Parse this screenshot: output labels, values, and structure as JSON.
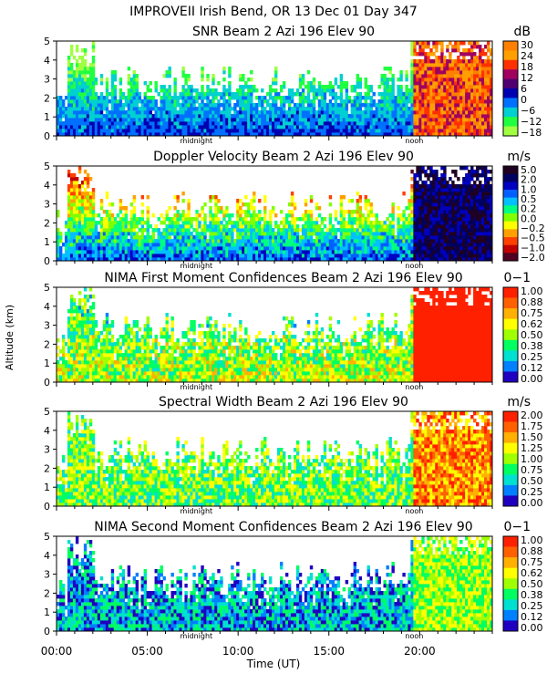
{
  "figure": {
    "title": "IMPROVEII  Irish Bend, OR  13 Dec 01 Day 347",
    "ylabel": "Altitude (km)",
    "xlabel": "Time (UT)",
    "x_ticks": [
      "00:00",
      "05:00",
      "10:00",
      "15:00",
      "20:00"
    ],
    "markers": {
      "midnight": "midnight",
      "noon": "noon"
    }
  },
  "chart_data": [
    {
      "type": "heatmap",
      "title": "SNR Beam 2 Azi 196 Elev 90",
      "unit": "dB",
      "y_ticks": [
        "0",
        "1",
        "2",
        "3",
        "4",
        "5"
      ],
      "ylim": [
        0,
        5
      ],
      "xlim_hours": [
        0,
        24
      ],
      "colorbar": {
        "labels": [
          "30",
          "24",
          "18",
          "12",
          "6",
          "0",
          "−6",
          "−12",
          "−18"
        ],
        "colors": [
          "#ff7f00",
          "#ffa000",
          "#ff3000",
          "#a00060",
          "#500070",
          "#0000b0",
          "#0070ff",
          "#00d0d0",
          "#20ff40",
          "#a0ff40"
        ]
      }
    },
    {
      "type": "heatmap",
      "title": "Doppler Velocity Beam 2 Azi 196 Elev 90",
      "unit": "m/s",
      "y_ticks": [
        "0",
        "1",
        "2",
        "3",
        "4",
        "5"
      ],
      "ylim": [
        0,
        5
      ],
      "xlim_hours": [
        0,
        24
      ],
      "colorbar": {
        "labels": [
          "5.0",
          "2.0",
          "1.0",
          "0.5",
          "0.2",
          "0.0",
          "−0.2",
          "−0.5",
          "−1.0",
          "−2.0"
        ],
        "colors": [
          "#200020",
          "#000060",
          "#0000c0",
          "#0060ff",
          "#00c0ff",
          "#00ff80",
          "#80ff00",
          "#ffff00",
          "#ffa000",
          "#ff4000",
          "#c00000",
          "#500020"
        ]
      }
    },
    {
      "type": "heatmap",
      "title": "NIMA First Moment Confidences Beam 2 Azi 196 Elev 90",
      "unit": "0−1",
      "y_ticks": [
        "0",
        "1",
        "2",
        "3",
        "4",
        "5"
      ],
      "ylim": [
        0,
        5
      ],
      "xlim_hours": [
        0,
        24
      ],
      "colorbar": {
        "labels": [
          "1.00",
          "0.88",
          "0.75",
          "0.62",
          "0.50",
          "0.38",
          "0.25",
          "0.12",
          "0.00"
        ],
        "colors": [
          "#ff2000",
          "#ff6000",
          "#ffb000",
          "#ffff00",
          "#a0ff00",
          "#00ff60",
          "#00e0d0",
          "#0080ff",
          "#2000c0"
        ]
      }
    },
    {
      "type": "heatmap",
      "title": "Spectral Width Beam 2 Azi 196 Elev 90",
      "unit": "m/s",
      "y_ticks": [
        "0",
        "1",
        "2",
        "3",
        "4",
        "5"
      ],
      "ylim": [
        0,
        5
      ],
      "xlim_hours": [
        0,
        24
      ],
      "colorbar": {
        "labels": [
          "2.00",
          "1.75",
          "1.50",
          "1.25",
          "1.00",
          "0.75",
          "0.50",
          "0.25",
          "0.00"
        ],
        "colors": [
          "#ff2000",
          "#ff6000",
          "#ffb000",
          "#ffff00",
          "#a0ff00",
          "#00ff60",
          "#00e0d0",
          "#0080ff",
          "#2000c0"
        ]
      }
    },
    {
      "type": "heatmap",
      "title": "NIMA Second Moment Confidences Beam 2 Azi 196 Elev 90",
      "unit": "0−1",
      "y_ticks": [
        "0",
        "1",
        "2",
        "3",
        "4",
        "5"
      ],
      "ylim": [
        0,
        5
      ],
      "xlim_hours": [
        0,
        24
      ],
      "colorbar": {
        "labels": [
          "1.00",
          "0.88",
          "0.75",
          "0.62",
          "0.50",
          "0.38",
          "0.25",
          "0.12",
          "0.00"
        ],
        "colors": [
          "#ff2000",
          "#ff6000",
          "#ffb000",
          "#ffff00",
          "#a0ff00",
          "#00ff60",
          "#00e0d0",
          "#0080ff",
          "#2000c0"
        ]
      }
    }
  ]
}
